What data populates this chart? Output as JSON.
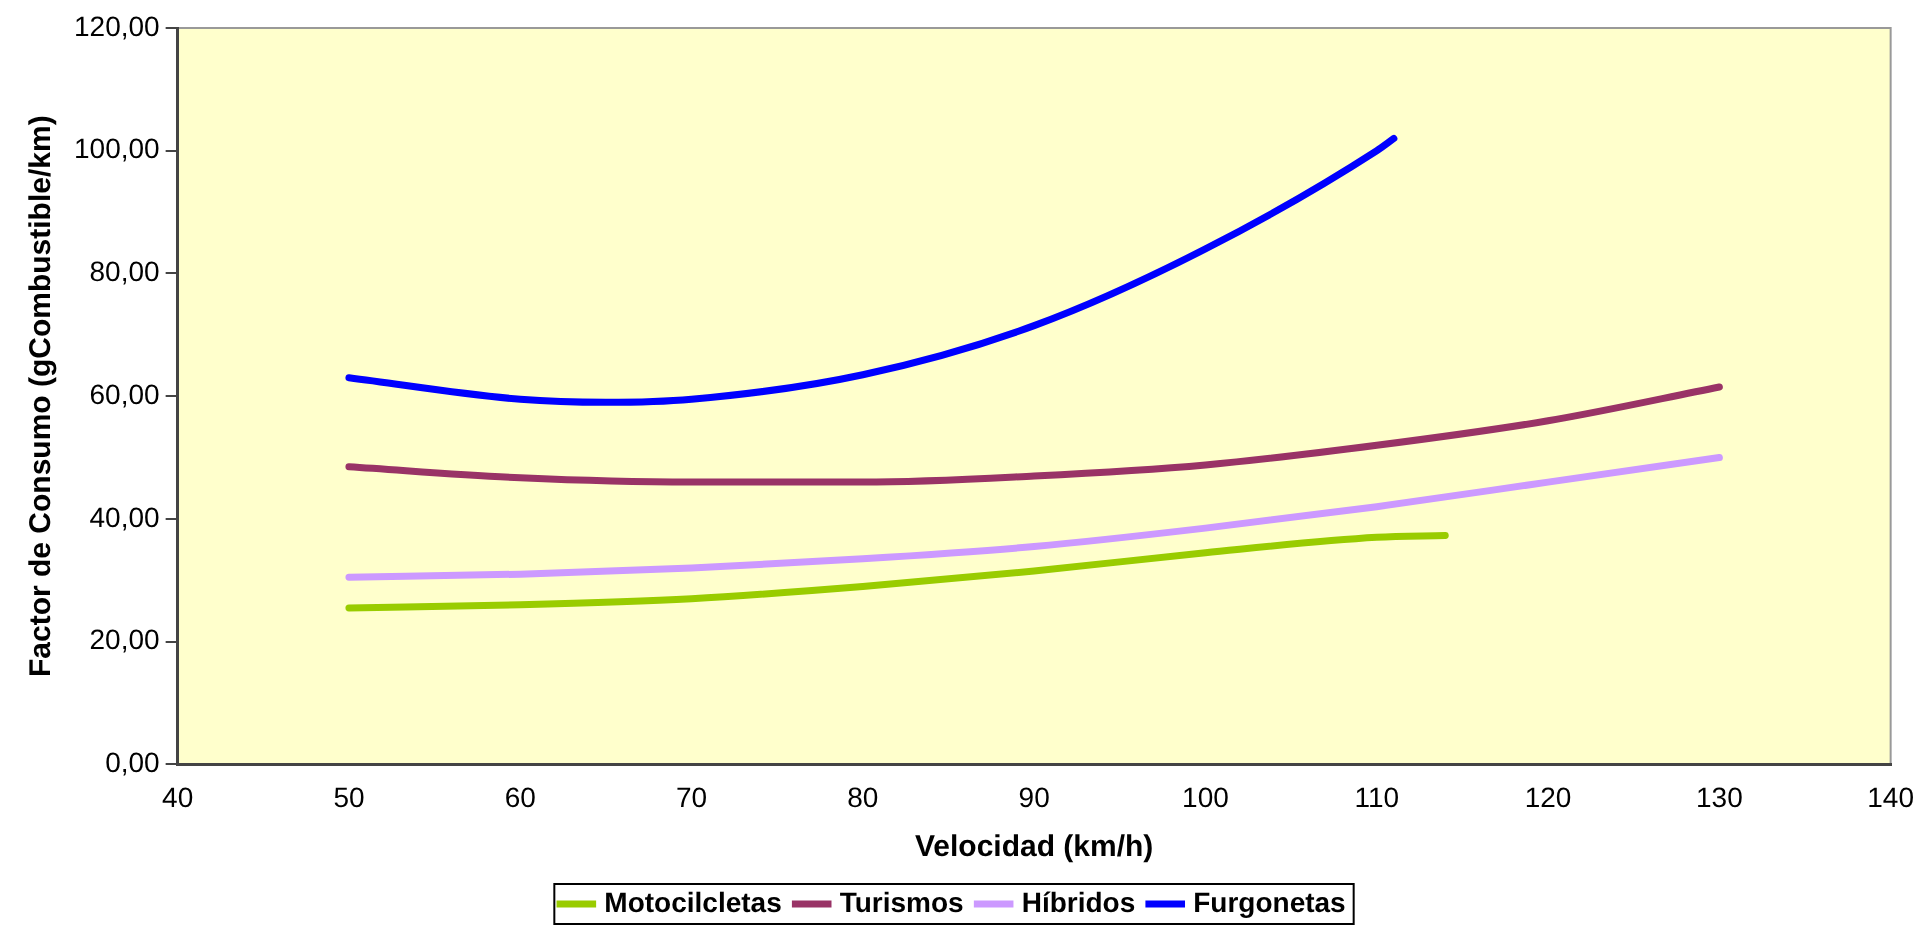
{
  "chart_data": {
    "type": "line",
    "xlabel": "Velocidad (km/h)",
    "ylabel": "Factor de Consumo (gCombustible/km)",
    "xlim": [
      40,
      140
    ],
    "xticks": [
      40,
      50,
      60,
      70,
      80,
      90,
      100,
      110,
      120,
      130,
      140
    ],
    "ylim": [
      0,
      120
    ],
    "yticks": [
      {
        "value": 0,
        "label": "0,00"
      },
      {
        "value": 20,
        "label": "20,00"
      },
      {
        "value": 40,
        "label": "40,00"
      },
      {
        "value": 60,
        "label": "60,00"
      },
      {
        "value": 80,
        "label": "80,00"
      },
      {
        "value": 100,
        "label": "100,00"
      },
      {
        "value": 120,
        "label": "120,00"
      }
    ],
    "grid": false,
    "legend": "bottom",
    "marker": "none",
    "line_style": "solid",
    "series": [
      {
        "name": "Motocilcletas",
        "color": "#99cc00",
        "x": [
          50,
          60,
          70,
          80,
          90,
          100,
          110,
          114
        ],
        "values": [
          25.5,
          26,
          27,
          29,
          31.5,
          34.5,
          37,
          37.3
        ]
      },
      {
        "name": "Turismos",
        "color": "#993366",
        "x": [
          50,
          60,
          70,
          80,
          90,
          100,
          110,
          120,
          130
        ],
        "values": [
          48.5,
          46.7,
          46,
          46,
          47,
          48.8,
          52,
          56,
          61.5
        ]
      },
      {
        "name": "Híbridos",
        "color": "#cc99ff",
        "x": [
          50,
          60,
          70,
          80,
          90,
          100,
          110,
          120,
          130
        ],
        "values": [
          30.5,
          31,
          32,
          33.5,
          35.5,
          38.5,
          42,
          46,
          50
        ]
      },
      {
        "name": "Furgonetas",
        "color": "#0000ff",
        "x": [
          50,
          60,
          65,
          70,
          80,
          90,
          100,
          110,
          111
        ],
        "values": [
          63,
          59.5,
          59,
          59.5,
          63.5,
          71.5,
          84,
          100,
          102
        ]
      }
    ]
  }
}
